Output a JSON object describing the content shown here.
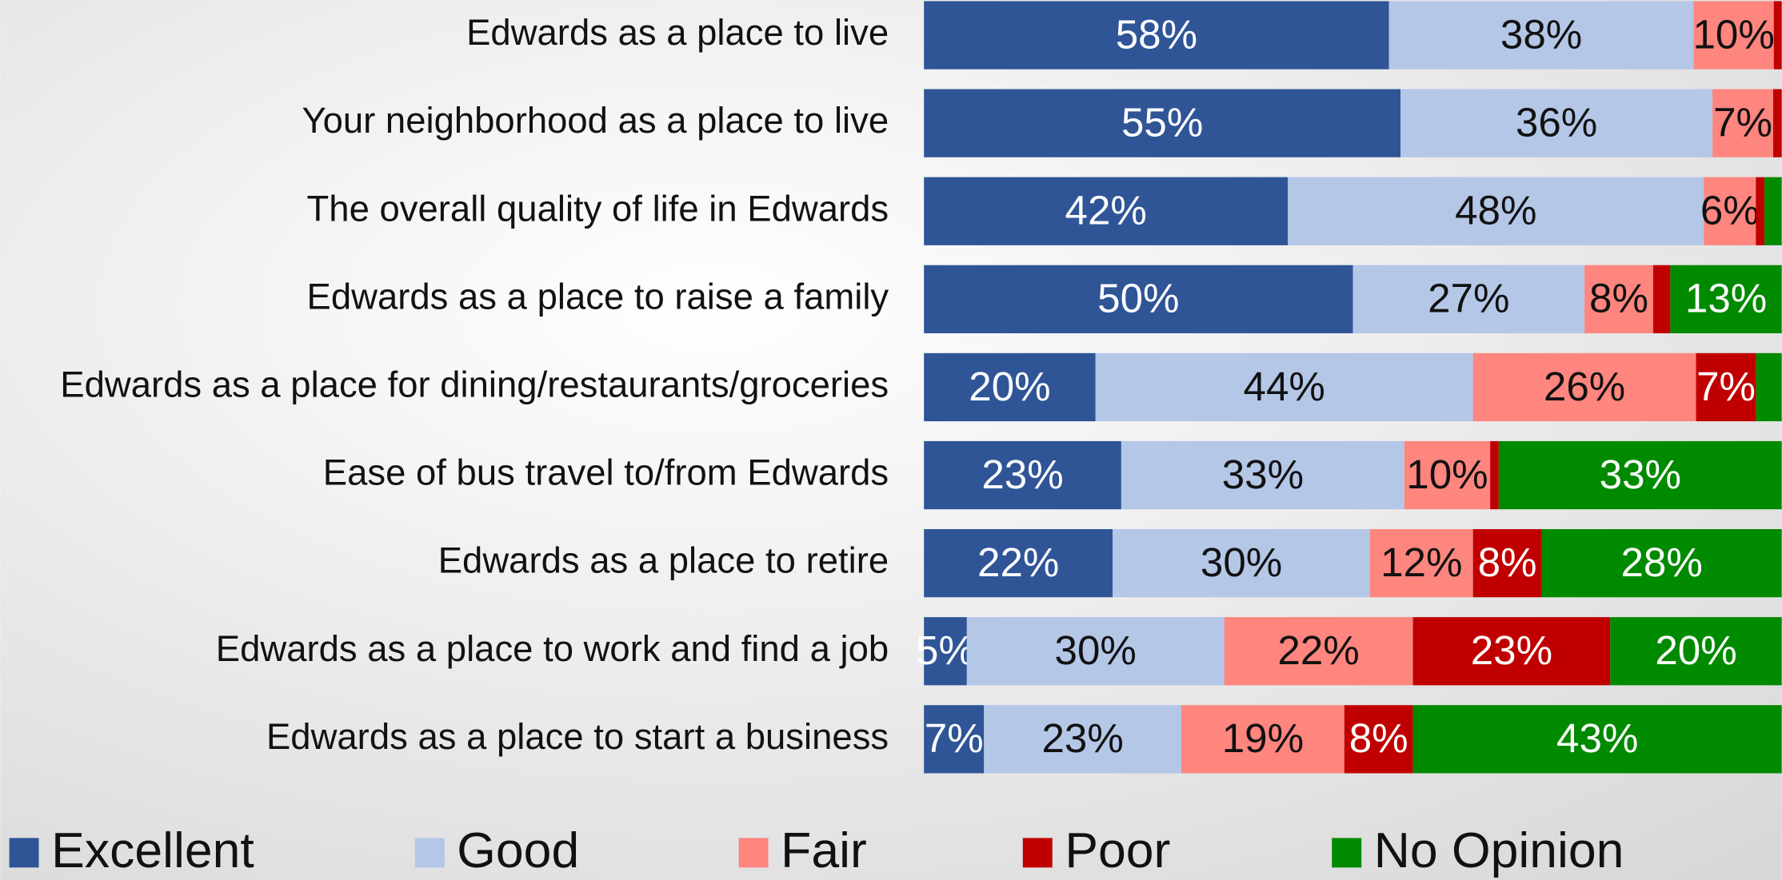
{
  "chart_data": {
    "type": "stacked-bar",
    "categories": [
      "Edwards as a place to live",
      "Your neighborhood as a place to live",
      "The overall quality of life in Edwards",
      "Edwards as a place to raise a family",
      "Edwards as a place for dining/restaurants/groceries",
      "Ease of bus travel to/from Edwards",
      "Edwards as a place to retire",
      "Edwards as a place to work and find a job",
      "Edwards as a place to start a business"
    ],
    "series": [
      {
        "name": "Excellent",
        "color": "#2f5597",
        "values": [
          58,
          55,
          42,
          50,
          20,
          23,
          22,
          5,
          7
        ],
        "value_labels": [
          "58%",
          "55%",
          "42%",
          "50%",
          "20%",
          "23%",
          "22%",
          "5%",
          "7%"
        ]
      },
      {
        "name": "Good",
        "color": "#b4c7e7",
        "values": [
          38,
          36,
          48,
          27,
          44,
          33,
          30,
          30,
          23
        ],
        "value_labels": [
          "38%",
          "36%",
          "48%",
          "27%",
          "44%",
          "33%",
          "30%",
          "30%",
          "23%"
        ]
      },
      {
        "name": "Fair",
        "color": "#ff857f",
        "values": [
          10,
          7,
          6,
          8,
          26,
          10,
          12,
          22,
          19
        ],
        "value_labels": [
          "10%",
          "7%",
          "6%",
          "8%",
          "26%",
          "10%",
          "12%",
          "22%",
          "19%"
        ]
      },
      {
        "name": "Poor",
        "color": "#c00000",
        "values": [
          1,
          1,
          1,
          2,
          7,
          1,
          8,
          23,
          8
        ],
        "value_labels": [
          null,
          null,
          null,
          null,
          "7%",
          null,
          "8%",
          "23%",
          "8%"
        ]
      },
      {
        "name": "No Opinion",
        "color": "#008a00",
        "values": [
          0,
          0,
          2,
          13,
          3,
          33,
          28,
          20,
          43
        ],
        "value_labels": [
          null,
          null,
          null,
          "13%",
          null,
          "33%",
          "28%",
          "20%",
          "43%"
        ]
      }
    ],
    "legend": "bottom"
  }
}
